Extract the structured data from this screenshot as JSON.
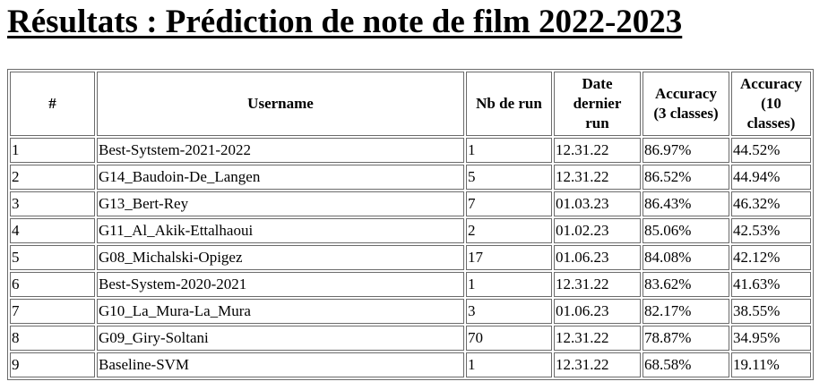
{
  "title": "Résultats : Prédiction de note de film 2022-2023",
  "table": {
    "headers": {
      "rank": "#",
      "username": "Username",
      "runs": "Nb de run",
      "date_line1": "Date",
      "date_line2": "dernier",
      "date_line3": "run",
      "acc3_line1": "Accuracy",
      "acc3_line2": "(3 classes)",
      "acc10_line1": "Accuracy",
      "acc10_line2": "(10",
      "acc10_line3": "classes)"
    },
    "rows": [
      {
        "rank": "1",
        "username": "Best-Sytstem-2021-2022",
        "runs": "1",
        "date": "12.31.22",
        "acc3": "86.97%",
        "acc10": "44.52%"
      },
      {
        "rank": "2",
        "username": "G14_Baudoin-De_Langen",
        "runs": "5",
        "date": "12.31.22",
        "acc3": "86.52%",
        "acc10": "44.94%"
      },
      {
        "rank": "3",
        "username": "G13_Bert-Rey",
        "runs": "7",
        "date": "01.03.23",
        "acc3": "86.43%",
        "acc10": "46.32%"
      },
      {
        "rank": "4",
        "username": "G11_Al_Akik-Ettalhaoui",
        "runs": "2",
        "date": "01.02.23",
        "acc3": "85.06%",
        "acc10": "42.53%"
      },
      {
        "rank": "5",
        "username": "G08_Michalski-Opigez",
        "runs": "17",
        "date": "01.06.23",
        "acc3": "84.08%",
        "acc10": "42.12%"
      },
      {
        "rank": "6",
        "username": "Best-System-2020-2021",
        "runs": "1",
        "date": "12.31.22",
        "acc3": "83.62%",
        "acc10": "41.63%"
      },
      {
        "rank": "7",
        "username": "G10_La_Mura-La_Mura",
        "runs": "3",
        "date": "01.06.23",
        "acc3": "82.17%",
        "acc10": "38.55%"
      },
      {
        "rank": "8",
        "username": "G09_Giry-Soltani",
        "runs": "70",
        "date": "12.31.22",
        "acc3": "78.87%",
        "acc10": "34.95%"
      },
      {
        "rank": "9",
        "username": "Baseline-SVM",
        "runs": "1",
        "date": "12.31.22",
        "acc3": "68.58%",
        "acc10": "19.11%"
      }
    ]
  }
}
